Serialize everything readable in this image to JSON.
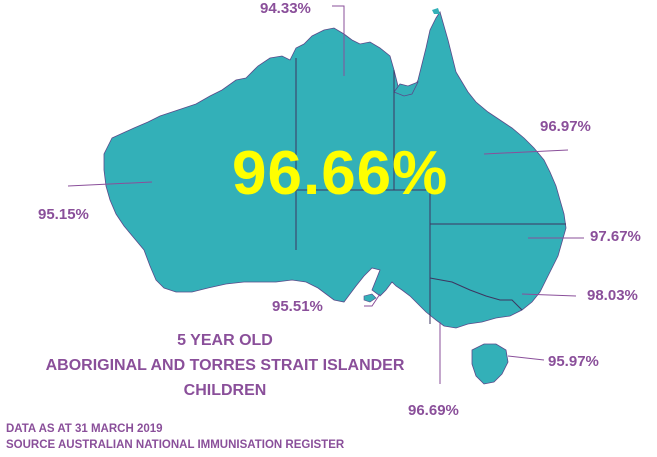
{
  "national_rate": "96.66%",
  "regions": {
    "nt": "94.33%",
    "wa": "95.15%",
    "qld": "96.97%",
    "nsw": "97.67%",
    "act": "98.03%",
    "sa": "95.51%",
    "vic": "96.69%",
    "tas": "95.97%"
  },
  "caption": {
    "line1": "5 YEAR OLD",
    "line2": "ABORIGINAL AND TORRES STRAIT ISLANDER",
    "line3": "CHILDREN"
  },
  "footer": {
    "date": "DATA AS AT 31 MARCH 2019",
    "source": "SOURCE AUSTRALIAN NATIONAL IMMUNISATION REGISTER"
  },
  "colors": {
    "land": "#33b0b8",
    "border": "#5a4a8a",
    "text": "#8a4f9a",
    "highlight": "#ffff00"
  }
}
